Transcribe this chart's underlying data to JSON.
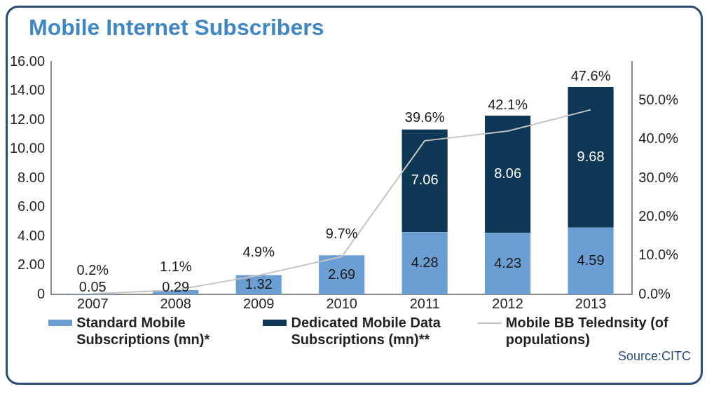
{
  "chart_data": {
    "type": "bar",
    "title": "Mobile Internet Subscribers",
    "categories": [
      "2007",
      "2008",
      "2009",
      "2010",
      "2011",
      "2012",
      "2013"
    ],
    "stacked": true,
    "series": [
      {
        "name": "Standard Mobile Subscriptions (mn)*",
        "color": "#6b9fd3",
        "values": [
          0.05,
          0.29,
          1.32,
          2.69,
          4.28,
          4.23,
          4.59
        ],
        "value_labels": [
          "0.05",
          "0.29",
          "1.32",
          "2.69",
          "4.28",
          "4.23",
          "4.59"
        ]
      },
      {
        "name": "Dedicated Mobile Data Subscriptions (mn)**",
        "color": "#0e3756",
        "values": [
          null,
          null,
          null,
          null,
          7.06,
          8.06,
          9.68
        ],
        "value_labels": [
          null,
          null,
          null,
          null,
          "7.06",
          "8.06",
          "9.68"
        ]
      },
      {
        "name": "Mobile BB Telednsity (of populations)",
        "type": "line",
        "axis": "y2",
        "color": "#c4c4c4",
        "values": [
          0.2,
          1.1,
          4.9,
          9.7,
          39.6,
          42.1,
          47.6
        ],
        "value_labels": [
          "0.2%",
          "1.1%",
          "4.9%",
          "9.7%",
          "39.6%",
          "42.1%",
          "47.6%"
        ]
      }
    ],
    "ylim": [
      0,
      16
    ],
    "yticks": [
      0,
      {
        "value": 2,
        "label": "2.00"
      },
      {
        "value": 4,
        "label": "4.00"
      },
      {
        "value": 6,
        "label": "6.00"
      },
      {
        "value": 8,
        "label": "8.00"
      },
      {
        "value": 10,
        "label": "10.00"
      },
      {
        "value": 12,
        "label": "12.00"
      },
      {
        "value": 14,
        "label": "14.00"
      },
      {
        "value": 16,
        "label": "16.00"
      }
    ],
    "y2lim": [
      0,
      60
    ],
    "y2ticks": [
      {
        "value": 0,
        "label": "0.0%"
      },
      {
        "value": 10,
        "label": "10.0%"
      },
      {
        "value": 20,
        "label": "20.0%"
      },
      {
        "value": 30,
        "label": "30.0%"
      },
      {
        "value": 40,
        "label": "40.0%"
      },
      {
        "value": 50,
        "label": "50.0%"
      }
    ],
    "legend": "bottom",
    "grid": false,
    "marker": "none",
    "annotations": [
      "Source:CITC"
    ]
  }
}
